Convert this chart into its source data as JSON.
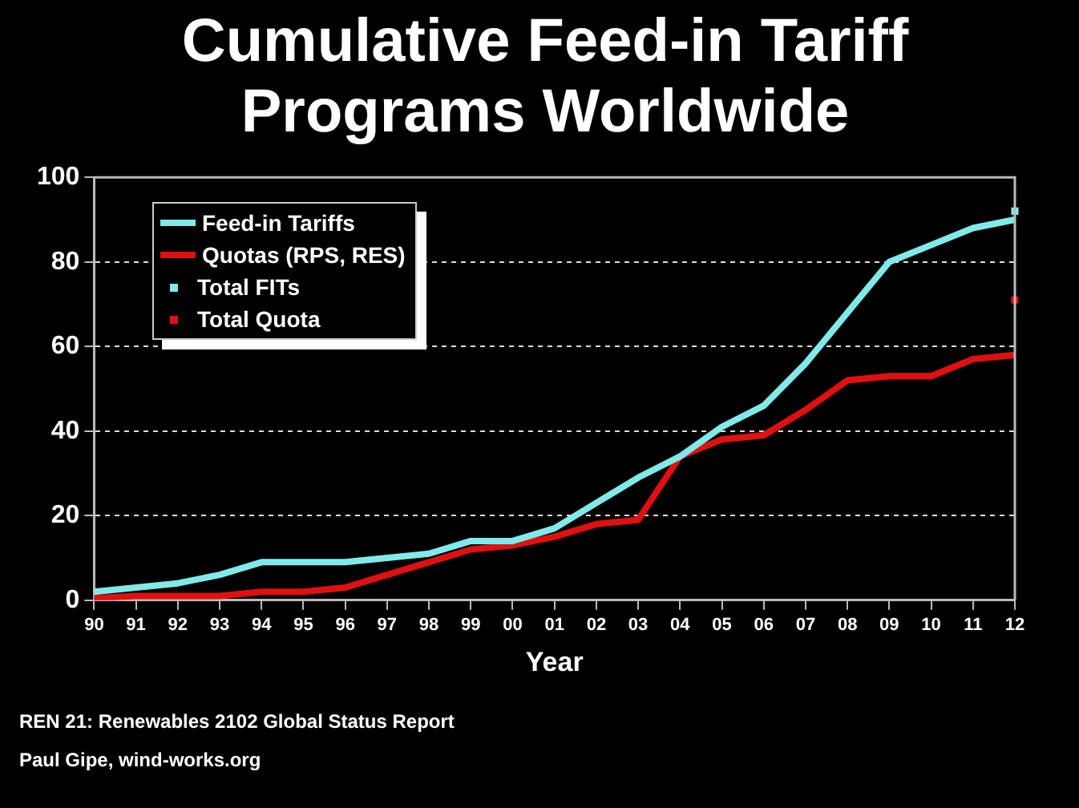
{
  "chart_data": {
    "type": "line",
    "title": "Cumulative Feed-in Tariff Programs Worldwide",
    "xlabel": "Year",
    "categories": [
      "90",
      "91",
      "92",
      "93",
      "94",
      "95",
      "96",
      "97",
      "98",
      "99",
      "00",
      "01",
      "02",
      "03",
      "04",
      "05",
      "06",
      "07",
      "08",
      "09",
      "10",
      "11",
      "12"
    ],
    "series": [
      {
        "name": "Feed-in Tariffs",
        "color": "#80eaea",
        "values": [
          2,
          3,
          4,
          6,
          9,
          9,
          9,
          10,
          11,
          14,
          14,
          17,
          23,
          29,
          34,
          41,
          46,
          56,
          68,
          80,
          84,
          88,
          90
        ]
      },
      {
        "name": "Quotas (RPS, RES)",
        "color": "#e01010",
        "values": [
          0.5,
          1,
          1,
          1,
          2,
          2,
          3,
          6,
          9,
          12,
          13,
          15,
          18,
          19,
          34,
          38,
          39,
          45,
          52,
          53,
          53,
          57,
          58
        ]
      },
      {
        "name": "Total FITs",
        "type": "scatter",
        "color": "#80eaea",
        "x": [
          "12"
        ],
        "values": [
          92
        ]
      },
      {
        "name": "Total Quota",
        "type": "scatter",
        "color": "#e01010",
        "x": [
          "12"
        ],
        "values": [
          71
        ]
      }
    ],
    "ylim": [
      0,
      100
    ],
    "yticks": [
      0,
      20,
      40,
      60,
      80,
      100
    ],
    "grid": "y",
    "legend": "top left",
    "annotations": [
      "REN 21: Renewables 2102 Global Status Report",
      "Paul Gipe, wind-works.org"
    ]
  }
}
